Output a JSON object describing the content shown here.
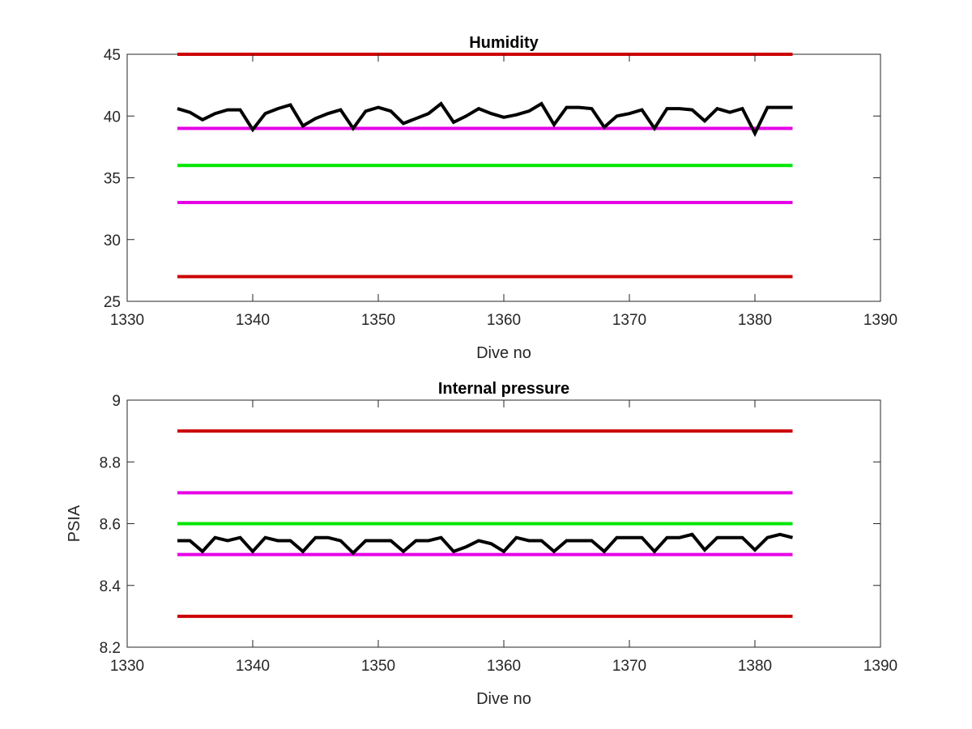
{
  "chart_data": [
    {
      "type": "line",
      "title": "Humidity",
      "xlabel": "Dive no",
      "ylabel": "",
      "xlim": [
        1330,
        1390
      ],
      "ylim": [
        25,
        45
      ],
      "xticks": [
        "1330",
        "1340",
        "1350",
        "1360",
        "1370",
        "1380",
        "1390"
      ],
      "yticks": [
        "25",
        "30",
        "35",
        "40",
        "45"
      ],
      "grid": false,
      "reference_lines": [
        {
          "y": 45,
          "color": "#cc0000"
        },
        {
          "y": 39,
          "color": "#e600e6"
        },
        {
          "y": 36,
          "color": "#00e600"
        },
        {
          "y": 33,
          "color": "#e600e6"
        },
        {
          "y": 27,
          "color": "#cc0000"
        }
      ],
      "series": [
        {
          "color": "#000000",
          "x": [
            1334,
            1335,
            1336,
            1337,
            1338,
            1339,
            1340,
            1341,
            1342,
            1343,
            1344,
            1345,
            1346,
            1347,
            1348,
            1349,
            1350,
            1351,
            1352,
            1353,
            1354,
            1355,
            1356,
            1357,
            1358,
            1359,
            1360,
            1361,
            1362,
            1363,
            1364,
            1365,
            1366,
            1367,
            1368,
            1369,
            1370,
            1371,
            1372,
            1373,
            1374,
            1375,
            1376,
            1377,
            1378,
            1379,
            1380,
            1381,
            1382,
            1383
          ],
          "y": [
            40.6,
            40.3,
            39.7,
            40.2,
            40.5,
            40.5,
            38.9,
            40.2,
            40.6,
            40.9,
            39.2,
            39.8,
            40.2,
            40.5,
            39.0,
            40.4,
            40.7,
            40.4,
            39.4,
            39.8,
            40.2,
            41.0,
            39.5,
            40.0,
            40.6,
            40.2,
            39.9,
            40.1,
            40.4,
            41.0,
            39.3,
            40.7,
            40.7,
            40.6,
            39.1,
            40.0,
            40.2,
            40.5,
            39.0,
            40.6,
            40.6,
            40.5,
            39.6,
            40.6,
            40.3,
            40.6,
            38.6,
            40.7,
            40.7,
            40.7
          ]
        }
      ]
    },
    {
      "type": "line",
      "title": "Internal pressure",
      "xlabel": "Dive no",
      "ylabel": "PSIA",
      "xlim": [
        1330,
        1390
      ],
      "ylim": [
        8.2,
        9
      ],
      "xticks": [
        "1330",
        "1340",
        "1350",
        "1360",
        "1370",
        "1380",
        "1390"
      ],
      "yticks": [
        "8.2",
        "8.4",
        "8.6",
        "8.8",
        "9"
      ],
      "grid": false,
      "reference_lines": [
        {
          "y": 8.9,
          "color": "#cc0000"
        },
        {
          "y": 8.7,
          "color": "#e600e6"
        },
        {
          "y": 8.6,
          "color": "#00e600"
        },
        {
          "y": 8.5,
          "color": "#e600e6"
        },
        {
          "y": 8.3,
          "color": "#cc0000"
        }
      ],
      "series": [
        {
          "color": "#000000",
          "x": [
            1334,
            1335,
            1336,
            1337,
            1338,
            1339,
            1340,
            1341,
            1342,
            1343,
            1344,
            1345,
            1346,
            1347,
            1348,
            1349,
            1350,
            1351,
            1352,
            1353,
            1354,
            1355,
            1356,
            1357,
            1358,
            1359,
            1360,
            1361,
            1362,
            1363,
            1364,
            1365,
            1366,
            1367,
            1368,
            1369,
            1370,
            1371,
            1372,
            1373,
            1374,
            1375,
            1376,
            1377,
            1378,
            1379,
            1380,
            1381,
            1382,
            1383
          ],
          "y": [
            8.545,
            8.545,
            8.51,
            8.555,
            8.545,
            8.555,
            8.51,
            8.555,
            8.545,
            8.545,
            8.51,
            8.555,
            8.555,
            8.545,
            8.505,
            8.545,
            8.545,
            8.545,
            8.51,
            8.545,
            8.545,
            8.555,
            8.51,
            8.525,
            8.545,
            8.535,
            8.51,
            8.555,
            8.545,
            8.545,
            8.51,
            8.545,
            8.545,
            8.545,
            8.51,
            8.555,
            8.555,
            8.555,
            8.51,
            8.555,
            8.555,
            8.565,
            8.515,
            8.555,
            8.555,
            8.555,
            8.515,
            8.555,
            8.565,
            8.555
          ]
        }
      ]
    }
  ]
}
